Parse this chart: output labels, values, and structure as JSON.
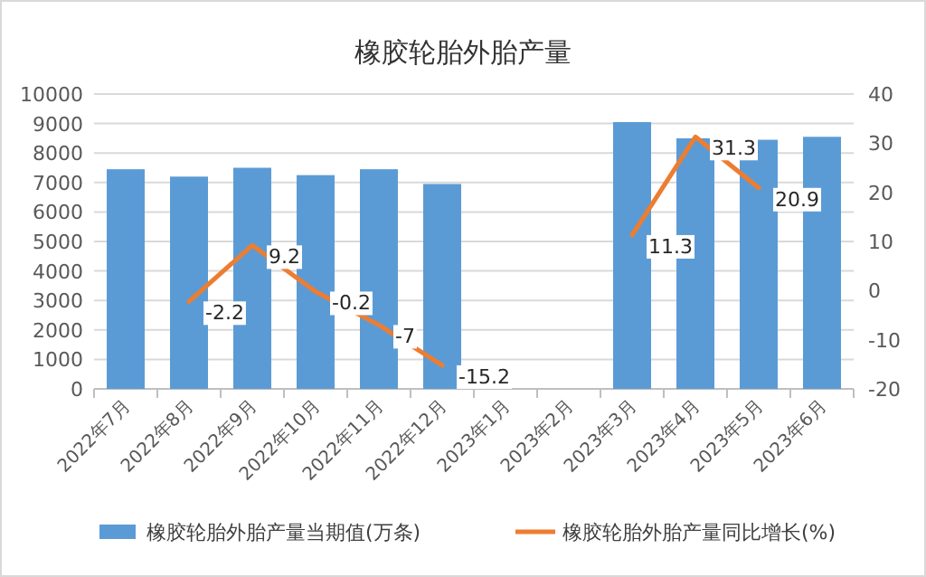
{
  "chart_data": {
    "type": "bar",
    "title": "橡胶轮胎外胎产量",
    "categories": [
      "2022年7月",
      "2022年8月",
      "2022年9月",
      "2022年10月",
      "2022年11月",
      "2022年12月",
      "2023年1月",
      "2023年2月",
      "2023年3月",
      "2023年4月",
      "2023年5月",
      "2023年6月"
    ],
    "series": [
      {
        "name": "橡胶轮胎外胎产量当期值(万条)",
        "color": "#5b9bd5",
        "values": [
          7450,
          7200,
          7500,
          7250,
          7450,
          6950,
          null,
          null,
          9050,
          8500,
          8450,
          8550
        ]
      },
      {
        "name": "橡胶轮胎外胎产量同比增长(%)",
        "type": "line",
        "axis": "y2",
        "color": "#ed7d31",
        "values": [
          null,
          -2.2,
          9.2,
          -0.2,
          -7,
          -15.2,
          null,
          null,
          11.3,
          31.3,
          20.9,
          null
        ],
        "value_labels": [
          null,
          "-2.2",
          "9.2",
          "-0.2",
          "-7",
          "-15.2",
          null,
          null,
          "11.3",
          "31.3",
          "20.9",
          null
        ]
      }
    ],
    "ylim": [
      0,
      10000
    ],
    "yticks": [
      0,
      1000,
      2000,
      3000,
      4000,
      5000,
      6000,
      7000,
      8000,
      9000,
      10000
    ],
    "y2lim": [
      -20,
      40
    ],
    "y2ticks": [
      -20,
      -10,
      0,
      10,
      20,
      30,
      40
    ],
    "grid": "y",
    "legend": "bottom"
  }
}
